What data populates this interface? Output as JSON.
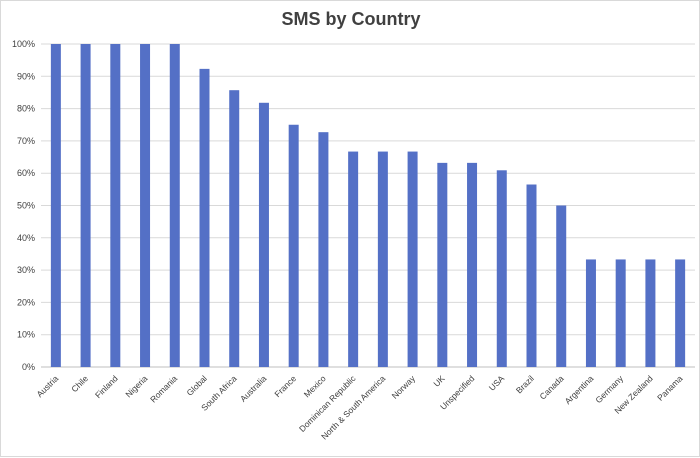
{
  "chart_data": {
    "type": "bar",
    "title": "SMS by Country",
    "xlabel": "",
    "ylabel": "",
    "ylim": [
      0,
      100
    ],
    "y_ticks": [
      "0%",
      "10%",
      "20%",
      "30%",
      "40%",
      "50%",
      "60%",
      "70%",
      "80%",
      "90%",
      "100%"
    ],
    "grid": true,
    "legend": "none",
    "bar_color": "#5470c6",
    "categories": [
      "Austria",
      "Chile",
      "Finland",
      "Nigeria",
      "Romania",
      "Global",
      "South Africa",
      "Australia",
      "France",
      "Mexico",
      "Dominican Republic",
      "North & South America",
      "Norway",
      "UK",
      "Unspecified",
      "USA",
      "Brazil",
      "Canada",
      "Argentina",
      "Germany",
      "New Zealand",
      "Panama"
    ],
    "values": [
      100,
      100,
      100,
      100,
      100,
      92.3,
      85.7,
      81.8,
      75,
      72.7,
      66.7,
      66.7,
      66.7,
      63.2,
      63.2,
      60.9,
      56.5,
      50,
      33.3,
      33.3,
      33.3,
      33.3
    ]
  }
}
